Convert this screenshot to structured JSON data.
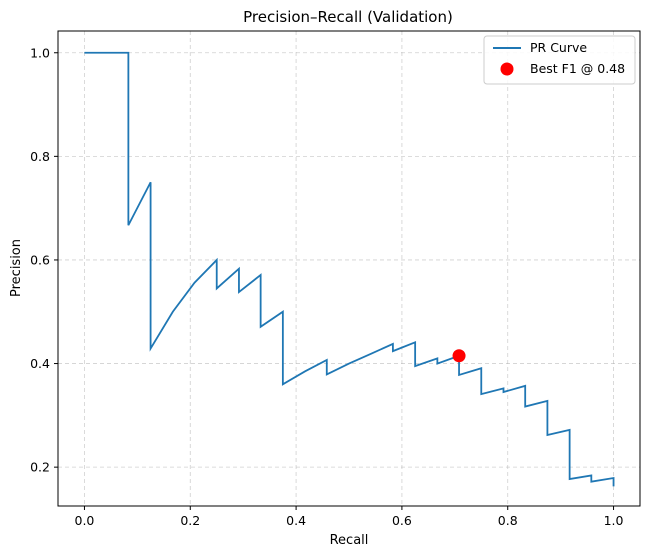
{
  "chart_data": {
    "type": "line",
    "title": "Precision–Recall (Validation)",
    "xlabel": "Recall",
    "ylabel": "Precision",
    "xlim": [
      -0.05,
      1.05
    ],
    "ylim": [
      0.125,
      1.042
    ],
    "xticks": [
      0.0,
      0.2,
      0.4,
      0.6,
      0.8,
      1.0
    ],
    "yticks": [
      0.2,
      0.4,
      0.6,
      0.8,
      1.0
    ],
    "grid": true,
    "legend_position": "top-right",
    "series": [
      {
        "name": "PR Curve",
        "color": "#1f77b4",
        "x": [
          0.0,
          0.083,
          0.083,
          0.125,
          0.125,
          0.167,
          0.208,
          0.25,
          0.25,
          0.292,
          0.292,
          0.333,
          0.333,
          0.375,
          0.375,
          0.417,
          0.458,
          0.458,
          0.5,
          0.542,
          0.583,
          0.583,
          0.625,
          0.625,
          0.667,
          0.667,
          0.708,
          0.708,
          0.75,
          0.75,
          0.792,
          0.792,
          0.833,
          0.833,
          0.875,
          0.875,
          0.917,
          0.917,
          0.958,
          0.958,
          1.0,
          1.0
        ],
        "y": [
          1.0,
          1.0,
          0.667,
          0.75,
          0.429,
          0.5,
          0.556,
          0.6,
          0.545,
          0.583,
          0.538,
          0.571,
          0.471,
          0.5,
          0.36,
          0.385,
          0.407,
          0.379,
          0.4,
          0.419,
          0.438,
          0.424,
          0.441,
          0.395,
          0.41,
          0.4,
          0.415,
          0.378,
          0.391,
          0.341,
          0.352,
          0.345,
          0.357,
          0.317,
          0.328,
          0.262,
          0.272,
          0.177,
          0.184,
          0.172,
          0.179,
          0.163
        ]
      },
      {
        "name": "Best F1 @ 0.48",
        "type": "scatter",
        "color": "#ff0000",
        "x": [
          0.708
        ],
        "y": [
          0.415
        ]
      }
    ]
  }
}
